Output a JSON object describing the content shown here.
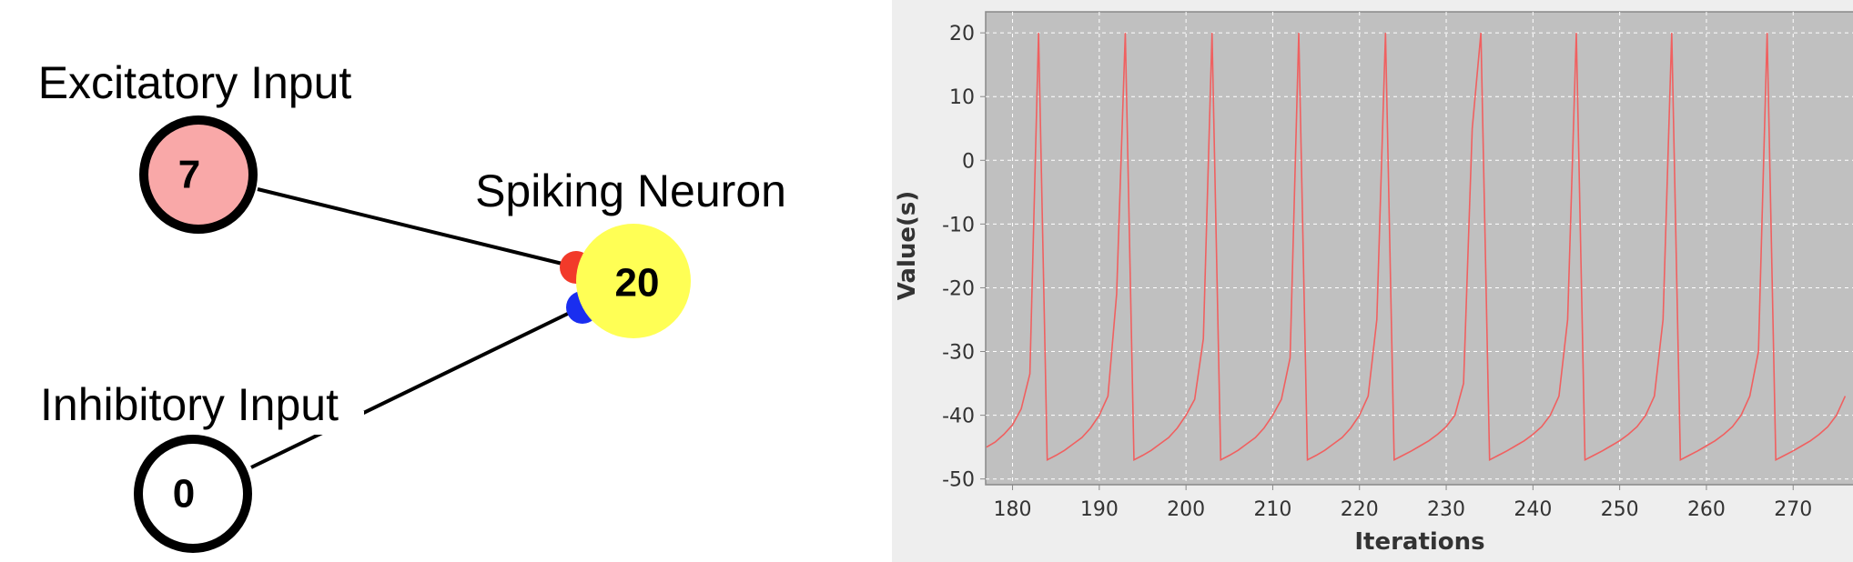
{
  "diagram": {
    "nodes": [
      {
        "label": "Excitatory Input",
        "value": 7
      },
      {
        "label": "Inhibitory Input",
        "value": 0
      },
      {
        "label": "Spiking Neuron",
        "value": 20
      }
    ]
  },
  "chart_data": {
    "type": "line",
    "xlabel": "Iterations",
    "ylabel": "Value(s)",
    "x": [
      177,
      178,
      179,
      180,
      181,
      182,
      183,
      184,
      185,
      186,
      187,
      188,
      189,
      190,
      191,
      192,
      193,
      194,
      195,
      196,
      197,
      198,
      199,
      200,
      201,
      202,
      203,
      204,
      205,
      206,
      207,
      208,
      209,
      210,
      211,
      212,
      213,
      214,
      215,
      216,
      217,
      218,
      219,
      220,
      221,
      222,
      223,
      224,
      225,
      226,
      227,
      228,
      229,
      230,
      231,
      232,
      233,
      234,
      235,
      236,
      237,
      238,
      239,
      240,
      241,
      242,
      243,
      244,
      245,
      246,
      247,
      248,
      249,
      250,
      251,
      252,
      253,
      254,
      255,
      256,
      257,
      258,
      259,
      260,
      261,
      262,
      263,
      264,
      265,
      266,
      267,
      268,
      269,
      270,
      271,
      272,
      273,
      274,
      275,
      276
    ],
    "series": [
      {
        "color": "#f06060",
        "values": [
          -45,
          -44.2,
          -43,
          -41.5,
          -39,
          -33.5,
          20,
          -47,
          -46.3,
          -45.5,
          -44.5,
          -43.5,
          -42,
          -40,
          -37,
          -21,
          20,
          -47,
          -46.3,
          -45.5,
          -44.5,
          -43.5,
          -42,
          -40,
          -37.5,
          -28,
          20,
          -47,
          -46.3,
          -45.5,
          -44.5,
          -43.5,
          -42,
          -40,
          -37.5,
          -31,
          20,
          -47,
          -46.3,
          -45.5,
          -44.5,
          -43.5,
          -42,
          -40,
          -37,
          -25,
          20,
          -47,
          -46.3,
          -45.6,
          -44.8,
          -44,
          -43,
          -41.8,
          -40,
          -35,
          5,
          20,
          -47,
          -46.3,
          -45.6,
          -44.8,
          -44,
          -43,
          -41.8,
          -40,
          -37,
          -25,
          20,
          -47,
          -46.3,
          -45.6,
          -44.8,
          -44,
          -43,
          -41.8,
          -40,
          -37,
          -25,
          20,
          -47,
          -46.3,
          -45.6,
          -44.8,
          -44,
          -43,
          -41.8,
          -40,
          -37,
          -30,
          20,
          -47,
          -46.3,
          -45.6,
          -44.8,
          -44,
          -43,
          -41.8,
          -40,
          -37
        ]
      }
    ],
    "xlim": [
      176.9,
      276.9
    ],
    "ylim": [
      -50.9,
      23.3
    ],
    "xticks": [
      180,
      190,
      200,
      210,
      220,
      230,
      240,
      250,
      260,
      270
    ],
    "yticks": [
      -50,
      -40,
      -30,
      -20,
      -10,
      0,
      10,
      20
    ],
    "grid": true
  }
}
